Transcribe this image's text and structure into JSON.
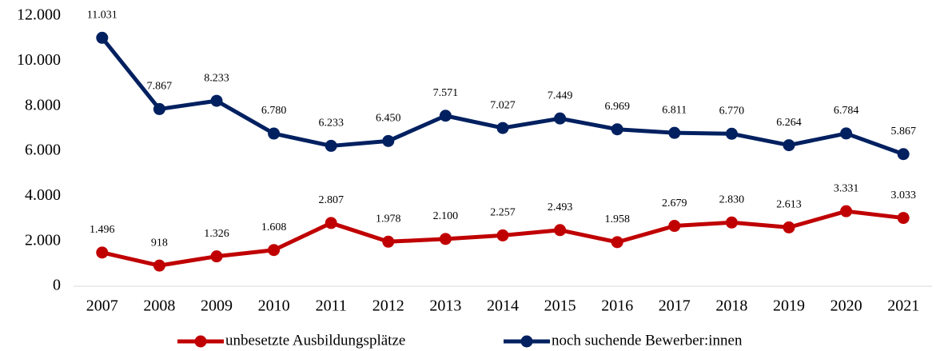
{
  "chart_data": {
    "type": "line",
    "categories": [
      "2007",
      "2008",
      "2009",
      "2010",
      "2011",
      "2012",
      "2013",
      "2014",
      "2015",
      "2016",
      "2017",
      "2018",
      "2019",
      "2020",
      "2021"
    ],
    "series": [
      {
        "name": "unbesetzte Ausbildungsplätze",
        "color": "#c00000",
        "values": [
          1496,
          918,
          1326,
          1608,
          2807,
          1978,
          2100,
          2257,
          2493,
          1958,
          2679,
          2830,
          2613,
          3331,
          3033
        ],
        "value_labels": [
          "1.496",
          "918",
          "1.326",
          "1.608",
          "2.807",
          "1.978",
          "2.100",
          "2.257",
          "2.493",
          "1.958",
          "2.679",
          "2.830",
          "2.613",
          "3.331",
          "3.033"
        ]
      },
      {
        "name": "noch suchende Bewerber:innen",
        "color": "#002060",
        "values": [
          11031,
          7867,
          8233,
          6780,
          6233,
          6450,
          7571,
          7027,
          7449,
          6969,
          6811,
          6770,
          6264,
          6784,
          5867
        ],
        "value_labels": [
          "11.031",
          "7.867",
          "8.233",
          "6.780",
          "6.233",
          "6.450",
          "7.571",
          "7.027",
          "7.449",
          "6.969",
          "6.811",
          "6.770",
          "6.264",
          "6.784",
          "5.867"
        ]
      }
    ],
    "ylim": [
      0,
      12000
    ],
    "yticks": [
      0,
      {
        "value": 2000,
        "label": "2.000"
      },
      {
        "value": 4000,
        "label": "4.000"
      },
      {
        "value": 6000,
        "label": "6.000"
      },
      {
        "value": 8000,
        "label": "8.000"
      },
      {
        "value": 10000,
        "label": "10.000"
      },
      {
        "value": 12000,
        "label": "12.000"
      }
    ],
    "grid": false,
    "legend": "bottom"
  }
}
